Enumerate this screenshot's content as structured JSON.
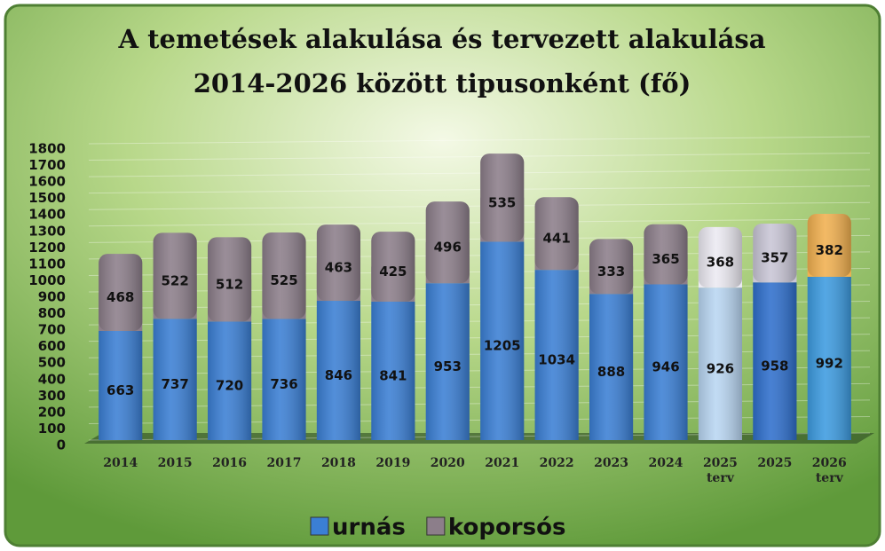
{
  "chart_data": {
    "type": "stacked_bar",
    "title": "A temetések alakulása és tervezett alakulása",
    "subtitle": "2014-2026 között  tipusonként (fő)",
    "categories": [
      "2014",
      "2015",
      "2016",
      "2017",
      "2018",
      "2019",
      "2020",
      "2021",
      "2022",
      "2023",
      "2024",
      "2025\nterv",
      "2025",
      "2026\nterv"
    ],
    "series": [
      {
        "name": "urnás",
        "color": "#3b7fd4",
        "colors": [
          "#3b7fd4",
          "#3b7fd4",
          "#3b7fd4",
          "#3b7fd4",
          "#3b7fd4",
          "#3b7fd4",
          "#3b7fd4",
          "#3b7fd4",
          "#3b7fd4",
          "#3b7fd4",
          "#3b7fd4",
          "#b9d6f2",
          "#2f6fcc",
          "#3d9be0"
        ],
        "values": [
          663,
          737,
          720,
          736,
          846,
          841,
          953,
          1205,
          1034,
          888,
          946,
          926,
          958,
          992
        ]
      },
      {
        "name": "koporsós",
        "color": "#8c7e8a",
        "colors": [
          "#8c7e8a",
          "#8c7e8a",
          "#8c7e8a",
          "#8c7e8a",
          "#8c7e8a",
          "#8c7e8a",
          "#8c7e8a",
          "#8c7e8a",
          "#8c7e8a",
          "#8c7e8a",
          "#8c7e8a",
          "#eceaf2",
          "#c9c6d6",
          "#f1b050"
        ],
        "values": [
          468,
          522,
          512,
          525,
          463,
          425,
          496,
          535,
          441,
          333,
          365,
          368,
          357,
          382
        ]
      }
    ],
    "ylim": [
      0,
      1800
    ],
    "yticks": [
      0,
      100,
      200,
      300,
      400,
      500,
      600,
      700,
      800,
      900,
      1000,
      1100,
      1200,
      1300,
      1400,
      1500,
      1600,
      1700,
      1800
    ],
    "grid": true,
    "legend": "bottom"
  }
}
